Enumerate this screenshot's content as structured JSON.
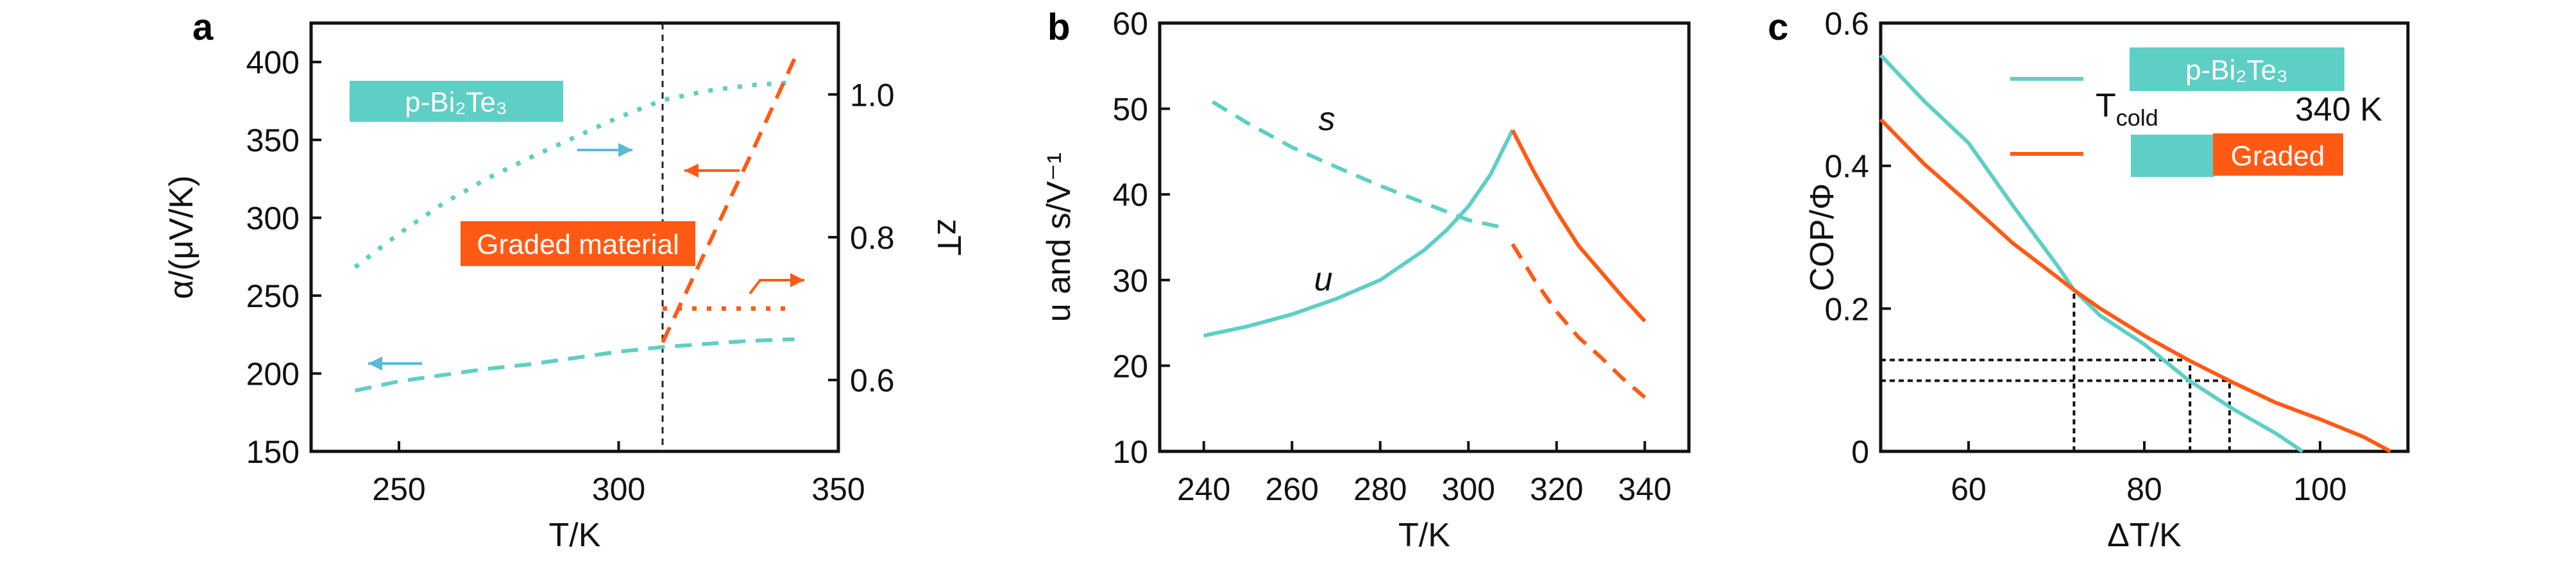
{
  "colors": {
    "teal": "#5ECFC5",
    "orange": "#FF5A14",
    "arrow_teal": "#5BB8D8",
    "axis": "#111111"
  },
  "chart_data": [
    {
      "panel": "a",
      "type": "line",
      "xlabel": "T/K",
      "ylabel": "α/(μV/K)",
      "y2label": "zT",
      "xlim": [
        230,
        350
      ],
      "ylim": [
        150,
        425
      ],
      "y2lim": [
        0.5,
        1.1
      ],
      "xticks": [
        250,
        300,
        350
      ],
      "yticks": [
        150,
        200,
        250,
        300,
        350,
        400
      ],
      "y2ticks": [
        "0.6",
        "0.8",
        "1.0"
      ],
      "grid": false,
      "vline": 310,
      "labels": {
        "bi2te3": "p-Bi₂Te₃",
        "graded": "Graded material"
      },
      "series": [
        {
          "material": "p-Bi2Te3",
          "quantity": "α",
          "axis": "left",
          "style": "dashed",
          "color": "teal",
          "x": [
            240,
            250,
            260,
            270,
            280,
            290,
            300,
            310,
            320,
            330,
            340
          ],
          "y": [
            189,
            195,
            199,
            203,
            206,
            210,
            214,
            217,
            219,
            221,
            222
          ]
        },
        {
          "material": "p-Bi2Te3",
          "quantity": "zT",
          "axis": "right",
          "style": "dotted",
          "color": "teal",
          "x": [
            240,
            250,
            260,
            270,
            280,
            290,
            300,
            310,
            320,
            330,
            340
          ],
          "y": [
            0.758,
            0.805,
            0.847,
            0.882,
            0.912,
            0.94,
            0.968,
            0.992,
            1.005,
            1.013,
            1.017
          ]
        },
        {
          "material": "Graded",
          "quantity": "α",
          "axis": "left",
          "style": "dashed",
          "color": "orange",
          "x": [
            310,
            320,
            330,
            340
          ],
          "y": [
            220,
            280,
            340,
            402
          ]
        },
        {
          "material": "Graded",
          "quantity": "zT",
          "axis": "right",
          "style": "dotted",
          "color": "orange",
          "x": [
            310,
            340
          ],
          "y": [
            0.7,
            0.7
          ]
        }
      ]
    },
    {
      "panel": "b",
      "type": "line",
      "xlabel": "T/K",
      "ylabel": "u and s/V⁻¹",
      "xlim": [
        230,
        350
      ],
      "ylim": [
        10,
        60
      ],
      "xticks": [
        240,
        260,
        280,
        300,
        320,
        340
      ],
      "yticks": [
        10,
        20,
        30,
        40,
        50,
        60
      ],
      "grid": false,
      "annotations": {
        "s": "s",
        "u": "u"
      },
      "series": [
        {
          "quantity": "u",
          "style": "solid",
          "color": "teal",
          "x": [
            240,
            250,
            260,
            270,
            280,
            290,
            295,
            300,
            305,
            310
          ],
          "y": [
            23.5,
            24.6,
            26,
            27.8,
            30,
            33.5,
            35.8,
            38.6,
            42.3,
            47.5
          ]
        },
        {
          "quantity": "u",
          "style": "solid",
          "color": "orange",
          "x": [
            310,
            315,
            320,
            325,
            330,
            335,
            340
          ],
          "y": [
            47.5,
            42.5,
            38,
            34,
            31,
            28,
            25.2
          ]
        },
        {
          "quantity": "s",
          "style": "dashed",
          "color": "teal",
          "x": [
            242,
            250,
            260,
            270,
            280,
            290,
            300,
            309
          ],
          "y": [
            50.8,
            48.3,
            45.5,
            43.2,
            41,
            39,
            37,
            36
          ]
        },
        {
          "quantity": "s",
          "style": "dashed",
          "color": "orange",
          "x": [
            310,
            315,
            320,
            325,
            330,
            335,
            340
          ],
          "y": [
            34.2,
            30,
            26.3,
            23.3,
            21,
            18.5,
            16.3
          ]
        }
      ]
    },
    {
      "panel": "c",
      "type": "line",
      "xlabel": "ΔT/K",
      "ylabel": "COP/Φ",
      "xlim": [
        50,
        110
      ],
      "ylim": [
        0,
        0.6
      ],
      "xticks": [
        60,
        80,
        100
      ],
      "yticks": [
        "0",
        "0.2",
        "0.4",
        "0.6"
      ],
      "grid": false,
      "legend": {
        "placement": "top-right",
        "tcold_symbol": "T",
        "tcold_sub": "cold",
        "tcold_value": "340 K",
        "entries": [
          {
            "label": "p-Bi₂Te₃",
            "color": "teal"
          },
          {
            "label": "Graded",
            "color": "orange"
          }
        ]
      },
      "reference_lines": {
        "horizontal": [
          {
            "y": 0.128,
            "x_to": 85.2
          },
          {
            "y": 0.099,
            "x_to": 89.7
          }
        ],
        "vertical": [
          {
            "x": 72,
            "y_to": 0.226
          },
          {
            "x": 85.2,
            "y_to": 0.128
          },
          {
            "x": 89.7,
            "y_to": 0.099
          }
        ]
      },
      "series": [
        {
          "name": "p-Bi₂Te₃",
          "color": "teal",
          "x": [
            50,
            55,
            60,
            65,
            70,
            72,
            75,
            80,
            85,
            90,
            95,
            98
          ],
          "y": [
            0.555,
            0.49,
            0.432,
            0.345,
            0.262,
            0.226,
            0.19,
            0.15,
            0.1,
            0.06,
            0.025,
            0.0
          ]
        },
        {
          "name": "Graded",
          "color": "orange",
          "x": [
            50,
            55,
            60,
            65,
            70,
            72,
            75,
            80,
            85,
            90,
            95,
            100,
            105,
            108
          ],
          "y": [
            0.465,
            0.402,
            0.348,
            0.292,
            0.245,
            0.226,
            0.2,
            0.162,
            0.128,
            0.097,
            0.068,
            0.045,
            0.02,
            0.0
          ]
        }
      ]
    }
  ]
}
